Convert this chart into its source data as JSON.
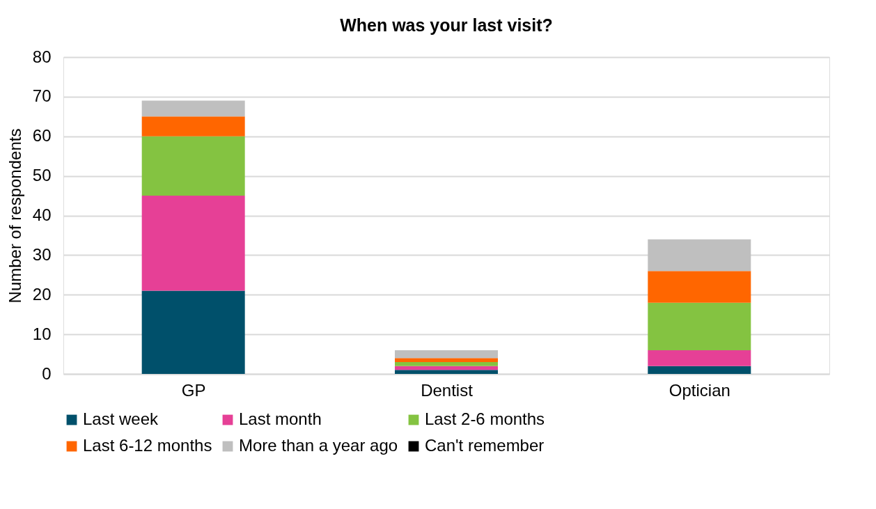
{
  "chart_data": {
    "type": "bar",
    "title": "When was your last visit?",
    "ylabel": "Number of respondents",
    "stacked": true,
    "categories": [
      "GP",
      "Dentist",
      "Optician"
    ],
    "series": [
      {
        "name": "Last week",
        "color": "#00506b",
        "values": [
          21,
          1,
          2
        ]
      },
      {
        "name": "Last month",
        "color": "#e64096",
        "values": [
          24,
          1,
          4
        ]
      },
      {
        "name": "Last 2-6 months",
        "color": "#84c341",
        "values": [
          15,
          1,
          12
        ]
      },
      {
        "name": "Last 6-12 months",
        "color": "#ff6600",
        "values": [
          5,
          1,
          8
        ]
      },
      {
        "name": "More than a year ago",
        "color": "#bfbfbf",
        "values": [
          4,
          2,
          8
        ]
      },
      {
        "name": "Can't remember",
        "color": "#000000",
        "values": [
          0,
          0,
          0
        ]
      }
    ],
    "ylim": [
      0,
      80
    ],
    "yticks": [
      0,
      10,
      20,
      30,
      40,
      50,
      60,
      70,
      80
    ],
    "grid": "y",
    "legend": "bottom"
  }
}
